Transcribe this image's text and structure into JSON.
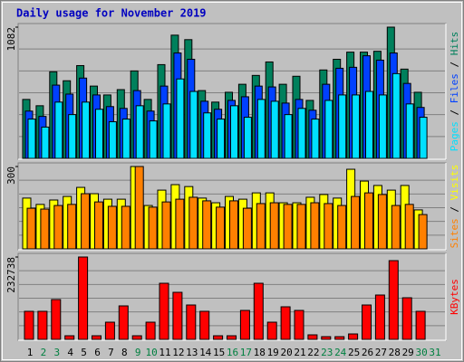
{
  "chart_data": {
    "type": "bar",
    "title": "Daily usage for November 2019",
    "categories": [
      "1",
      "2",
      "3",
      "4",
      "5",
      "6",
      "7",
      "8",
      "9",
      "10",
      "11",
      "12",
      "13",
      "14",
      "15",
      "16",
      "17",
      "18",
      "19",
      "20",
      "21",
      "22",
      "23",
      "24",
      "25",
      "26",
      "27",
      "28",
      "29",
      "30",
      "31"
    ],
    "category_colors": [
      "#000000",
      "#008040",
      "#008040",
      "#000000",
      "#000000",
      "#000000",
      "#000000",
      "#000000",
      "#008040",
      "#008040",
      "#000000",
      "#000000",
      "#000000",
      "#000000",
      "#000000",
      "#008040",
      "#008040",
      "#000000",
      "#000000",
      "#000000",
      "#000000",
      "#000000",
      "#008040",
      "#008040",
      "#000000",
      "#000000",
      "#000000",
      "#000000",
      "#000000",
      "#008040",
      "#008040"
    ],
    "panels": [
      {
        "ylim": [
          0,
          1082
        ],
        "yticks": [
          1082
        ],
        "series": [
          {
            "name": "Hits",
            "color": "#00805c",
            "values": [
              486,
              434,
              714,
              640,
              765,
              596,
              523,
              567,
              721,
              486,
              773,
              1016,
              979,
              559,
              464,
              545,
              611,
              684,
              795,
              611,
              677,
              478,
              729,
              817,
              876,
              876,
              883,
              1082,
              736,
              545,
              null
            ]
          },
          {
            "name": "Files",
            "color": "#0040ff",
            "values": [
              390,
              346,
              604,
              530,
              662,
              523,
              427,
              412,
              559,
              390,
              596,
              869,
              817,
              471,
              405,
              478,
              508,
              596,
              589,
              456,
              486,
              397,
              611,
              743,
              751,
              846,
              810,
              869,
              618,
              420,
              null
            ]
          },
          {
            "name": "Pages",
            "color": "#00e0ff",
            "values": [
              324,
              258,
              464,
              361,
              464,
              405,
              302,
              324,
              434,
              309,
              449,
              655,
              552,
              375,
              324,
              434,
              339,
              486,
              471,
              361,
              412,
              324,
              478,
              523,
              523,
              552,
              523,
              699,
              449,
              339,
              null
            ]
          }
        ]
      },
      {
        "ylim": [
          0,
          300
        ],
        "yticks": [
          300
        ],
        "series": [
          {
            "name": "Visits",
            "color": "#ffff00",
            "values": [
              185,
              162,
              178,
              191,
              224,
              201,
              181,
              181,
              300,
              158,
              214,
              234,
              227,
              185,
              168,
              191,
              181,
              204,
              204,
              168,
              168,
              188,
              198,
              185,
              290,
              247,
              231,
              214,
              231,
              142,
              null
            ]
          },
          {
            "name": "Sites",
            "color": "#ff8000",
            "values": [
              148,
              145,
              158,
              162,
              201,
              171,
              155,
              155,
              300,
              152,
              171,
              181,
              188,
              175,
              152,
              175,
              148,
              165,
              168,
              162,
              162,
              168,
              165,
              158,
              191,
              204,
              198,
              158,
              162,
              125,
              null
            ]
          }
        ]
      },
      {
        "ylim": [
          0,
          232738
        ],
        "yticks": [
          232738
        ],
        "series": [
          {
            "name": "KBytes",
            "color": "#ff0000",
            "values": [
              79285,
              79285,
              112534,
              10230,
              232738,
              10230,
              48594,
              94630,
              10230,
              48594,
              158570,
              132995,
              97187,
              79285,
              10230,
              10230,
              81843,
              158570,
              48594,
              92072,
              81843,
              12788,
              7673,
              7673,
              15345,
              97187,
              125323,
              222508,
              117649,
              79285,
              null
            ]
          }
        ]
      }
    ]
  }
}
